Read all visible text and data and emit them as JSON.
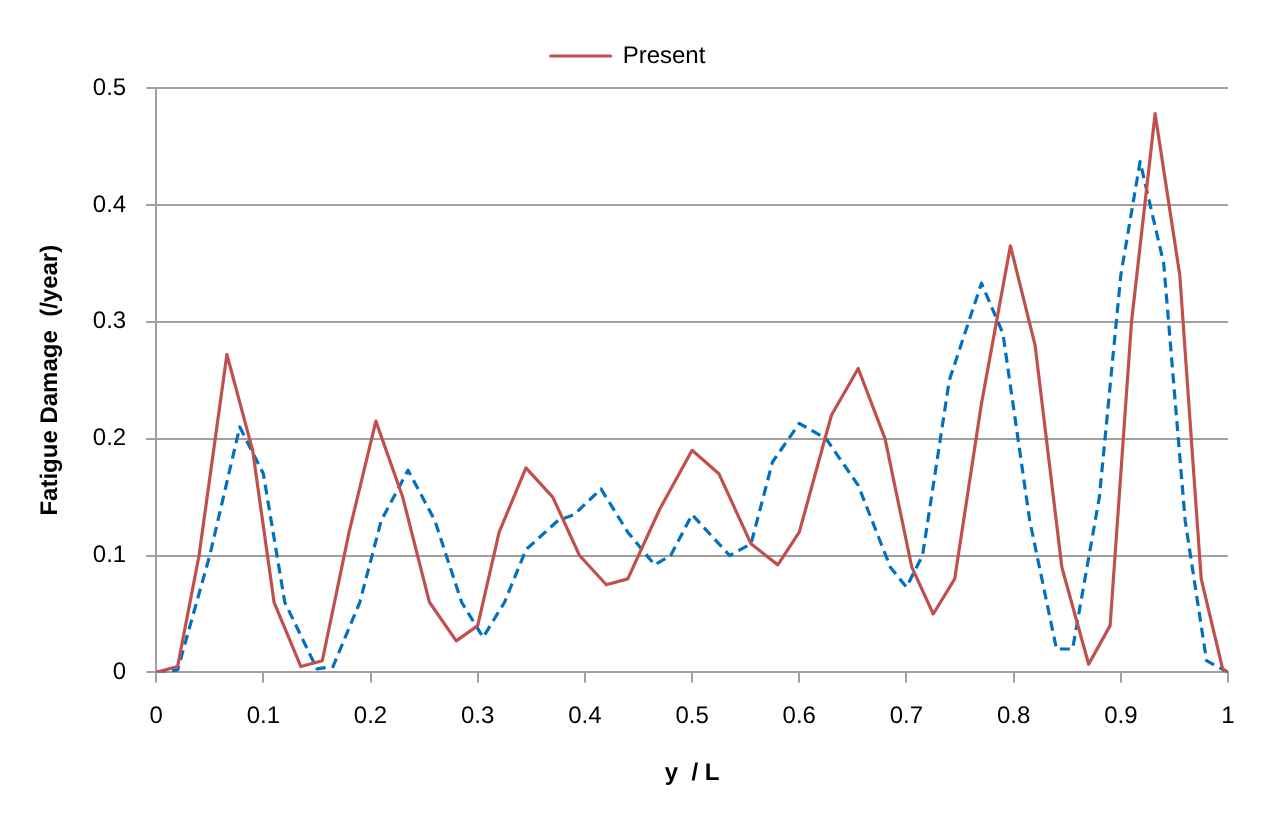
{
  "chart_data": {
    "type": "line",
    "xlabel": "y  / L",
    "ylabel": "Fatigue Damage  (/year)",
    "xlim": [
      0,
      1
    ],
    "ylim": [
      0,
      0.5
    ],
    "xticks": [
      0,
      0.1,
      0.2,
      0.3,
      0.4,
      0.5,
      0.6,
      0.7,
      0.8,
      0.9,
      1
    ],
    "yticks": [
      0,
      0.1,
      0.2,
      0.3,
      0.4,
      0.5
    ],
    "grid": "y",
    "legend": "top",
    "marker": "none",
    "series": [
      {
        "name": "Present",
        "color": "#c0504d",
        "line_style": "solid",
        "x": [
          0,
          0.02,
          0.04,
          0.066,
          0.09,
          0.11,
          0.135,
          0.155,
          0.18,
          0.205,
          0.23,
          0.255,
          0.28,
          0.3,
          0.32,
          0.345,
          0.37,
          0.395,
          0.42,
          0.44,
          0.47,
          0.5,
          0.525,
          0.555,
          0.58,
          0.6,
          0.63,
          0.655,
          0.68,
          0.705,
          0.725,
          0.745,
          0.77,
          0.797,
          0.82,
          0.845,
          0.87,
          0.89,
          0.91,
          0.932,
          0.955,
          0.975,
          0.995,
          1
        ],
        "values": [
          0,
          0.005,
          0.1,
          0.272,
          0.19,
          0.06,
          0.005,
          0.01,
          0.12,
          0.215,
          0.15,
          0.06,
          0.027,
          0.04,
          0.12,
          0.175,
          0.15,
          0.1,
          0.075,
          0.08,
          0.14,
          0.19,
          0.17,
          0.11,
          0.092,
          0.12,
          0.22,
          0.26,
          0.2,
          0.09,
          0.05,
          0.08,
          0.23,
          0.365,
          0.28,
          0.09,
          0.007,
          0.04,
          0.3,
          0.478,
          0.34,
          0.08,
          0.003,
          0
        ]
      },
      {
        "color": "#0070c0",
        "line_style": "dashed",
        "x": [
          0,
          0.02,
          0.05,
          0.078,
          0.1,
          0.12,
          0.15,
          0.165,
          0.19,
          0.21,
          0.235,
          0.26,
          0.285,
          0.305,
          0.325,
          0.345,
          0.375,
          0.39,
          0.415,
          0.44,
          0.465,
          0.48,
          0.5,
          0.515,
          0.535,
          0.555,
          0.575,
          0.6,
          0.625,
          0.655,
          0.685,
          0.7,
          0.715,
          0.74,
          0.77,
          0.79,
          0.815,
          0.84,
          0.855,
          0.88,
          0.9,
          0.918,
          0.94,
          0.96,
          0.98,
          1
        ],
        "values": [
          0,
          0.002,
          0.1,
          0.21,
          0.17,
          0.06,
          0.003,
          0.005,
          0.06,
          0.13,
          0.173,
          0.13,
          0.06,
          0.03,
          0.06,
          0.105,
          0.13,
          0.135,
          0.157,
          0.12,
          0.092,
          0.1,
          0.135,
          0.12,
          0.1,
          0.11,
          0.18,
          0.213,
          0.2,
          0.16,
          0.09,
          0.073,
          0.1,
          0.25,
          0.333,
          0.29,
          0.13,
          0.02,
          0.02,
          0.15,
          0.34,
          0.437,
          0.35,
          0.13,
          0.01,
          0
        ]
      }
    ]
  }
}
